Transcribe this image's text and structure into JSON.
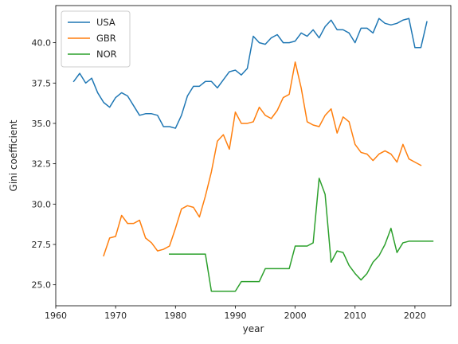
{
  "chart_data": {
    "type": "line",
    "xlabel": "year",
    "ylabel": "Gini coefficient",
    "xlim": [
      1960,
      2026
    ],
    "ylim": [
      23.7,
      42.3
    ],
    "xticks": [
      1960,
      1970,
      1980,
      1990,
      2000,
      2010,
      2020
    ],
    "yticks": [
      25.0,
      27.5,
      30.0,
      32.5,
      35.0,
      37.5,
      40.0
    ],
    "xtick_labels": [
      "1960",
      "1970",
      "1980",
      "1990",
      "2000",
      "2010",
      "2020"
    ],
    "ytick_labels": [
      "25.0",
      "27.5",
      "30.0",
      "32.5",
      "35.0",
      "37.5",
      "40.0"
    ],
    "grid": false,
    "legend_position": "top-left",
    "series": [
      {
        "name": "USA",
        "color": "#1f77b4",
        "x": [
          1963,
          1964,
          1965,
          1966,
          1967,
          1968,
          1969,
          1970,
          1971,
          1972,
          1973,
          1974,
          1975,
          1976,
          1977,
          1978,
          1979,
          1980,
          1981,
          1982,
          1983,
          1984,
          1985,
          1986,
          1987,
          1988,
          1989,
          1990,
          1991,
          1992,
          1993,
          1994,
          1995,
          1996,
          1997,
          1998,
          1999,
          2000,
          2001,
          2002,
          2003,
          2004,
          2005,
          2006,
          2007,
          2008,
          2009,
          2010,
          2011,
          2012,
          2013,
          2014,
          2015,
          2016,
          2017,
          2018,
          2019,
          2020,
          2021,
          2022
        ],
        "y": [
          37.6,
          38.1,
          37.5,
          37.8,
          36.9,
          36.3,
          36.0,
          36.6,
          36.9,
          36.7,
          36.1,
          35.5,
          35.6,
          35.6,
          35.5,
          34.8,
          34.8,
          34.7,
          35.5,
          36.7,
          37.3,
          37.3,
          37.6,
          37.6,
          37.2,
          37.7,
          38.2,
          38.3,
          38.0,
          38.4,
          40.4,
          40.0,
          39.9,
          40.3,
          40.5,
          40.0,
          40.0,
          40.1,
          40.6,
          40.4,
          40.8,
          40.3,
          41.0,
          41.4,
          40.8,
          40.8,
          40.6,
          40.0,
          40.9,
          40.9,
          40.6,
          41.5,
          41.2,
          41.1,
          41.2,
          41.4,
          41.5,
          39.7,
          39.7,
          41.3
        ]
      },
      {
        "name": "GBR",
        "color": "#ff7f0e",
        "x": [
          1968,
          1969,
          1970,
          1971,
          1972,
          1973,
          1974,
          1975,
          1976,
          1977,
          1978,
          1979,
          1980,
          1981,
          1982,
          1983,
          1984,
          1985,
          1986,
          1987,
          1988,
          1989,
          1990,
          1991,
          1992,
          1993,
          1994,
          1995,
          1996,
          1997,
          1998,
          1999,
          2000,
          2001,
          2002,
          2003,
          2004,
          2005,
          2006,
          2007,
          2008,
          2009,
          2010,
          2011,
          2012,
          2013,
          2014,
          2015,
          2016,
          2017,
          2018,
          2019,
          2020,
          2021
        ],
        "y": [
          26.8,
          27.9,
          28.0,
          29.3,
          28.8,
          28.8,
          29.0,
          27.9,
          27.6,
          27.1,
          27.2,
          27.4,
          28.5,
          29.7,
          29.9,
          29.8,
          29.2,
          30.5,
          32.0,
          33.9,
          34.3,
          33.4,
          35.7,
          35.0,
          35.0,
          35.1,
          36.0,
          35.5,
          35.3,
          35.8,
          36.6,
          36.8,
          38.8,
          37.2,
          35.1,
          34.9,
          34.8,
          35.5,
          35.9,
          34.4,
          35.4,
          35.1,
          33.7,
          33.2,
          33.1,
          32.7,
          33.1,
          33.3,
          33.1,
          32.6,
          33.7,
          32.8,
          32.6,
          32.4
        ]
      },
      {
        "name": "NOR",
        "color": "#2ca02c",
        "x": [
          1979,
          1980,
          1981,
          1982,
          1983,
          1984,
          1985,
          1986,
          1987,
          1988,
          1989,
          1990,
          1991,
          1992,
          1993,
          1994,
          1995,
          1996,
          1997,
          1998,
          1999,
          2000,
          2001,
          2002,
          2003,
          2004,
          2005,
          2006,
          2007,
          2008,
          2009,
          2010,
          2011,
          2012,
          2013,
          2014,
          2015,
          2016,
          2017,
          2018,
          2019,
          2020,
          2021,
          2022,
          2023
        ],
        "y": [
          26.9,
          26.9,
          26.9,
          26.9,
          26.9,
          26.9,
          26.9,
          24.6,
          24.6,
          24.6,
          24.6,
          24.6,
          25.2,
          25.2,
          25.2,
          25.2,
          26.0,
          26.0,
          26.0,
          26.0,
          26.0,
          27.4,
          27.4,
          27.4,
          27.6,
          31.6,
          30.6,
          26.4,
          27.1,
          27.0,
          26.2,
          25.7,
          25.3,
          25.7,
          26.4,
          26.8,
          27.5,
          28.5,
          27.0,
          27.6,
          27.7,
          27.7,
          27.7,
          27.7,
          27.7
        ]
      }
    ]
  }
}
